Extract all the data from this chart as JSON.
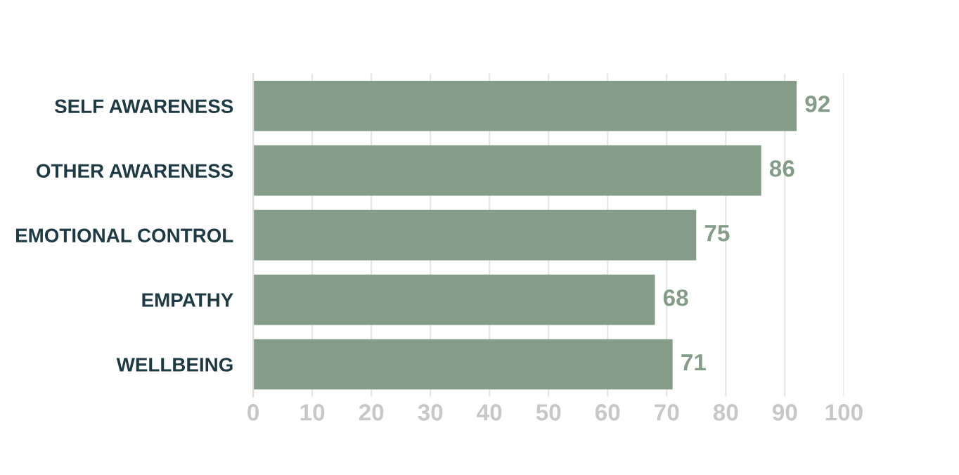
{
  "chart_data": {
    "type": "bar",
    "orientation": "horizontal",
    "categories": [
      "SELF AWARENESS",
      "OTHER AWARENESS",
      "EMOTIONAL CONTROL",
      "EMPATHY",
      "WELLBEING"
    ],
    "values": [
      92,
      86,
      75,
      68,
      71
    ],
    "color": "#859c89",
    "xlim": [
      0,
      100
    ],
    "xticks": [
      0,
      10,
      20,
      30,
      40,
      50,
      60,
      70,
      80,
      90,
      100
    ],
    "grid": "x",
    "data_labels": true
  }
}
